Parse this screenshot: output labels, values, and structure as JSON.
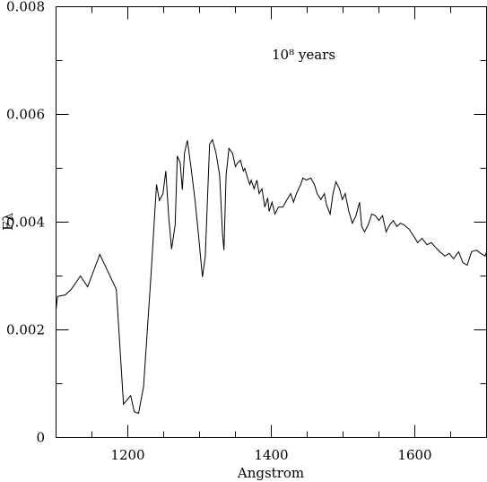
{
  "chart_data": {
    "type": "line",
    "xlabel": "Angstrom",
    "ylabel": "Fλ",
    "annotation": "10⁸ years",
    "x": [
      1100,
      1102,
      1113,
      1121,
      1134,
      1144,
      1161,
      1171,
      1184,
      1194,
      1204,
      1209,
      1215,
      1222,
      1232,
      1240,
      1244,
      1249,
      1253,
      1257,
      1261,
      1266,
      1269,
      1273,
      1276,
      1279,
      1283,
      1288,
      1294,
      1299,
      1304,
      1308,
      1314,
      1318,
      1323,
      1328,
      1332,
      1334,
      1337,
      1341,
      1346,
      1350,
      1353,
      1357,
      1361,
      1363,
      1367,
      1370,
      1372,
      1376,
      1380,
      1383,
      1387,
      1391,
      1395,
      1397,
      1401,
      1405,
      1410,
      1416,
      1422,
      1427,
      1431,
      1435,
      1441,
      1444,
      1449,
      1455,
      1460,
      1464,
      1469,
      1474,
      1477,
      1482,
      1486,
      1490,
      1495,
      1499,
      1503,
      1508,
      1513,
      1518,
      1523,
      1526,
      1530,
      1535,
      1540,
      1545,
      1550,
      1555,
      1560,
      1565,
      1570,
      1575,
      1580,
      1585,
      1592,
      1598,
      1604,
      1610,
      1617,
      1623,
      1629,
      1635,
      1642,
      1648,
      1654,
      1661,
      1667,
      1673,
      1679,
      1686,
      1692,
      1698,
      1700
    ],
    "values": [
      0.00237,
      0.00262,
      0.00265,
      0.00275,
      0.003,
      0.0028,
      0.0034,
      0.00312,
      0.00275,
      0.00062,
      0.00078,
      0.00048,
      0.00045,
      0.00095,
      0.00295,
      0.0047,
      0.0044,
      0.00453,
      0.00495,
      0.0041,
      0.0035,
      0.00395,
      0.00523,
      0.0051,
      0.0046,
      0.00528,
      0.00552,
      0.00503,
      0.00437,
      0.0037,
      0.00298,
      0.00337,
      0.00545,
      0.00553,
      0.00528,
      0.00487,
      0.00378,
      0.00348,
      0.00487,
      0.00537,
      0.00528,
      0.00503,
      0.0051,
      0.00515,
      0.00495,
      0.005,
      0.00482,
      0.0047,
      0.00478,
      0.00462,
      0.00478,
      0.00453,
      0.00462,
      0.00428,
      0.00445,
      0.0042,
      0.00437,
      0.00415,
      0.00428,
      0.00428,
      0.00442,
      0.00453,
      0.00437,
      0.00453,
      0.0047,
      0.00482,
      0.00478,
      0.00482,
      0.0047,
      0.00453,
      0.00442,
      0.00453,
      0.00432,
      0.00415,
      0.00453,
      0.00475,
      0.00462,
      0.00442,
      0.00453,
      0.0042,
      0.00398,
      0.00412,
      0.00437,
      0.00392,
      0.00382,
      0.00395,
      0.00415,
      0.00412,
      0.00403,
      0.00412,
      0.00382,
      0.00395,
      0.00403,
      0.00392,
      0.00398,
      0.00395,
      0.00387,
      0.00375,
      0.00362,
      0.0037,
      0.00358,
      0.00362,
      0.00353,
      0.00345,
      0.00337,
      0.00342,
      0.00332,
      0.00345,
      0.00325,
      0.0032,
      0.00345,
      0.00348,
      0.00342,
      0.00337,
      0.00345
    ],
    "color": "#000000",
    "xlim": [
      1100,
      1700
    ],
    "xticks": [
      1200,
      1400,
      1600
    ],
    "xminorticks": [
      1150,
      1250,
      1300,
      1350,
      1450,
      1500,
      1550,
      1650
    ],
    "ylim": [
      0,
      0.008
    ],
    "yticks": [
      0,
      0.002,
      0.004,
      0.006,
      0.008
    ],
    "yminorticks": [
      0.001,
      0.003,
      0.005,
      0.007
    ]
  }
}
